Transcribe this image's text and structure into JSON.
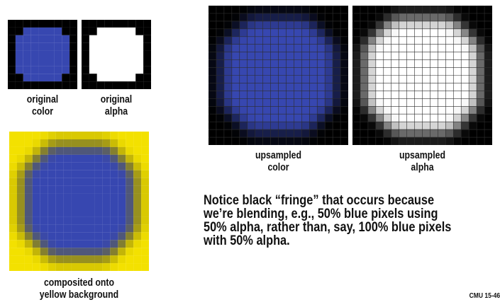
{
  "colors": {
    "blue": "#3747b0",
    "yellow": "#f3e100",
    "black": "#000000",
    "white": "#ffffff",
    "grid": "#2c2c2c"
  },
  "panels": {
    "original_color": {
      "caption": [
        "original",
        "color"
      ]
    },
    "original_alpha": {
      "caption": [
        "original",
        "alpha"
      ]
    },
    "composited": {
      "caption": [
        "composited onto",
        "yellow background"
      ]
    },
    "upsampled_color": {
      "caption": [
        "upsampled",
        "color"
      ]
    },
    "upsampled_alpha": {
      "caption": [
        "upsampled",
        "alpha"
      ]
    }
  },
  "note": {
    "lines": [
      "Notice black “fringe” that occurs because",
      "we’re blending, e.g., 50% blue pixels using",
      "50% alpha, rather than, say, 100% blue pixels",
      "with 50% alpha."
    ]
  },
  "footer": {
    "text": "CMU 15-46"
  }
}
